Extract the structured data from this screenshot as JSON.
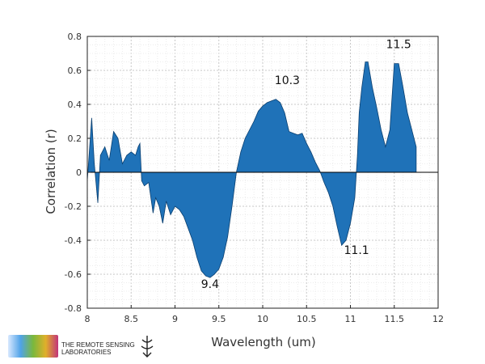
{
  "chart_data": {
    "type": "area",
    "xlabel": "Wavelength (um)",
    "ylabel": "Correlation (r)",
    "xlim": [
      8,
      12
    ],
    "ylim": [
      -0.8,
      0.8
    ],
    "xticks": [
      8,
      8.5,
      9,
      9.5,
      10,
      10.5,
      11,
      11.5,
      12
    ],
    "xtick_labels": [
      "8",
      "8.5",
      "9",
      "9.5",
      "10",
      "10.5",
      "11",
      "11.5",
      "12"
    ],
    "yticks": [
      -0.8,
      -0.6,
      -0.4,
      -0.2,
      0,
      0.2,
      0.4,
      0.6,
      0.8
    ],
    "ytick_labels": [
      "-0.8",
      "-0.6",
      "-0.4",
      "-0.2",
      "0",
      "0.2",
      "0.4",
      "0.6",
      "0.8"
    ],
    "grid": true,
    "fill_color": "#1f72b8",
    "line_color": "#0a3f70",
    "x": [
      8.0,
      8.05,
      8.08,
      8.12,
      8.15,
      8.2,
      8.25,
      8.3,
      8.35,
      8.4,
      8.45,
      8.5,
      8.55,
      8.58,
      8.6,
      8.62,
      8.65,
      8.7,
      8.75,
      8.78,
      8.82,
      8.86,
      8.9,
      8.95,
      9.0,
      9.05,
      9.1,
      9.15,
      9.2,
      9.25,
      9.3,
      9.35,
      9.4,
      9.45,
      9.5,
      9.55,
      9.6,
      9.65,
      9.7,
      9.75,
      9.8,
      9.85,
      9.9,
      9.95,
      10.0,
      10.05,
      10.1,
      10.15,
      10.2,
      10.25,
      10.3,
      10.35,
      10.4,
      10.45,
      10.5,
      10.55,
      10.6,
      10.65,
      10.7,
      10.75,
      10.8,
      10.85,
      10.9,
      10.95,
      11.0,
      11.05,
      11.08,
      11.1,
      11.13,
      11.17,
      11.2,
      11.25,
      11.3,
      11.35,
      11.4,
      11.45,
      11.5,
      11.55,
      11.6,
      11.65,
      11.7,
      11.75
    ],
    "values": [
      -0.05,
      0.32,
      0.05,
      -0.18,
      0.1,
      0.15,
      0.07,
      0.24,
      0.2,
      0.05,
      0.1,
      0.12,
      0.1,
      0.15,
      0.17,
      -0.05,
      -0.08,
      -0.06,
      -0.24,
      -0.15,
      -0.2,
      -0.3,
      -0.17,
      -0.25,
      -0.2,
      -0.22,
      -0.26,
      -0.33,
      -0.4,
      -0.5,
      -0.58,
      -0.61,
      -0.62,
      -0.6,
      -0.57,
      -0.5,
      -0.38,
      -0.2,
      0.0,
      0.12,
      0.2,
      0.25,
      0.3,
      0.36,
      0.39,
      0.41,
      0.42,
      0.43,
      0.41,
      0.35,
      0.24,
      0.23,
      0.22,
      0.23,
      0.17,
      0.12,
      0.06,
      0.01,
      -0.06,
      -0.12,
      -0.2,
      -0.32,
      -0.43,
      -0.4,
      -0.3,
      -0.15,
      0.1,
      0.35,
      0.5,
      0.65,
      0.65,
      0.5,
      0.38,
      0.25,
      0.15,
      0.25,
      0.64,
      0.64,
      0.5,
      0.35,
      0.25,
      0.15
    ],
    "annotations": [
      {
        "text": "11.5",
        "x": 11.55,
        "y": 0.73
      },
      {
        "text": "10.3",
        "x": 10.28,
        "y": 0.52
      },
      {
        "text": "11.1",
        "x": 11.07,
        "y": -0.48
      },
      {
        "text": "9.4",
        "x": 9.4,
        "y": -0.68
      }
    ]
  },
  "logo": {
    "line1": "THE REMOTE SENSING",
    "line2": "LABORATORIES"
  }
}
